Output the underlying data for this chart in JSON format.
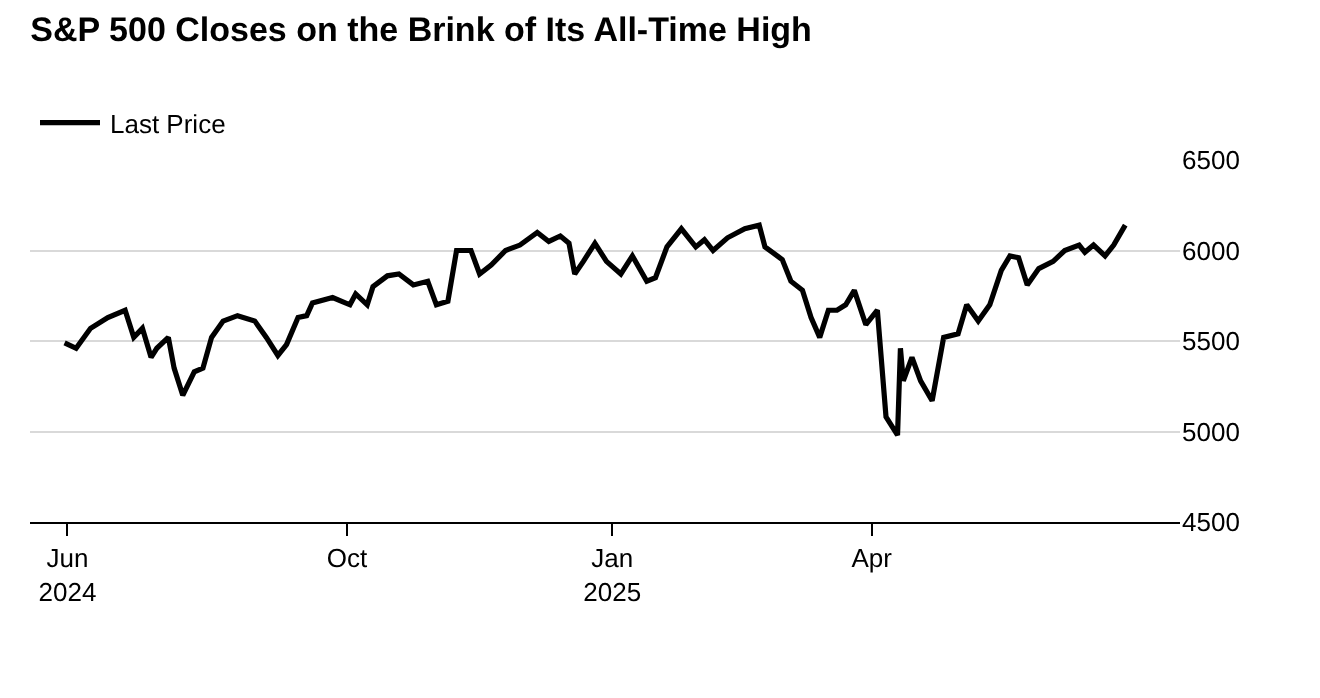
{
  "chart_data": {
    "type": "line",
    "title": "S&P 500 Closes on the Brink of Its All-Time High",
    "x": [
      "2024-06-25",
      "2024-06-29",
      "2024-07-04",
      "2024-07-10",
      "2024-07-16",
      "2024-07-19",
      "2024-07-22",
      "2024-07-25",
      "2024-07-27",
      "2024-07-31",
      "2024-08-02",
      "2024-08-05",
      "2024-08-09",
      "2024-08-12",
      "2024-08-15",
      "2024-08-19",
      "2024-08-24",
      "2024-08-30",
      "2024-09-03",
      "2024-09-07",
      "2024-09-10",
      "2024-09-14",
      "2024-09-17",
      "2024-09-19",
      "2024-09-26",
      "2024-10-02",
      "2024-10-04",
      "2024-10-08",
      "2024-10-10",
      "2024-10-15",
      "2024-10-19",
      "2024-10-24",
      "2024-10-29",
      "2024-11-01",
      "2024-11-05",
      "2024-11-08",
      "2024-11-13",
      "2024-11-16",
      "2024-11-20",
      "2024-11-25",
      "2024-11-30",
      "2024-12-06",
      "2024-12-10",
      "2024-12-14",
      "2024-12-17",
      "2024-12-19",
      "2024-12-22",
      "2024-12-26",
      "2024-12-30",
      "2025-01-04",
      "2025-01-08",
      "2025-01-13",
      "2025-01-16",
      "2025-01-20",
      "2025-01-25",
      "2025-01-30",
      "2025-02-02",
      "2025-02-05",
      "2025-02-10",
      "2025-02-16",
      "2025-02-21",
      "2025-02-23",
      "2025-03-01",
      "2025-03-04",
      "2025-03-08",
      "2025-03-11",
      "2025-03-14",
      "2025-03-17",
      "2025-03-20",
      "2025-03-23",
      "2025-03-26",
      "2025-03-30",
      "2025-04-03",
      "2025-04-06",
      "2025-04-10",
      "2025-04-11",
      "2025-04-12",
      "2025-04-15",
      "2025-04-18",
      "2025-04-22",
      "2025-04-26",
      "2025-05-01",
      "2025-05-04",
      "2025-05-08",
      "2025-05-12",
      "2025-05-16",
      "2025-05-19",
      "2025-05-22",
      "2025-05-25",
      "2025-05-29",
      "2025-06-03",
      "2025-06-07",
      "2025-06-12",
      "2025-06-14",
      "2025-06-17",
      "2025-06-21",
      "2025-06-24",
      "2025-06-28"
    ],
    "series": [
      {
        "name": "Last Price",
        "color": "#000000",
        "values": [
          5490,
          5460,
          5570,
          5630,
          5670,
          5520,
          5570,
          5410,
          5460,
          5520,
          5350,
          5200,
          5330,
          5350,
          5520,
          5610,
          5640,
          5610,
          5520,
          5420,
          5480,
          5630,
          5640,
          5710,
          5740,
          5700,
          5760,
          5700,
          5800,
          5860,
          5870,
          5810,
          5830,
          5700,
          5720,
          6000,
          6000,
          5870,
          5920,
          6000,
          6030,
          6100,
          6050,
          6080,
          6040,
          5870,
          5940,
          6040,
          5940,
          5870,
          5970,
          5830,
          5850,
          6020,
          6120,
          6020,
          6060,
          6000,
          6070,
          6120,
          6140,
          6020,
          5950,
          5830,
          5780,
          5630,
          5520,
          5670,
          5670,
          5700,
          5780,
          5590,
          5670,
          5080,
          4980,
          5460,
          5280,
          5410,
          5280,
          5170,
          5520,
          5540,
          5700,
          5610,
          5700,
          5890,
          5970,
          5960,
          5810,
          5900,
          5940,
          6000,
          6030,
          5990,
          6030,
          5970,
          6030,
          6140
        ]
      }
    ],
    "xlim": [
      "2024-06-13",
      "2025-07-17"
    ],
    "xticks": [
      {
        "value": "2024-06-26",
        "label": "Jun\n2024"
      },
      {
        "value": "2024-10-01",
        "label": "Oct"
      },
      {
        "value": "2025-01-01",
        "label": "Jan\n2025"
      },
      {
        "value": "2025-04-01",
        "label": "Apr"
      }
    ],
    "ylim": [
      4500,
      6500
    ],
    "yticks": [
      4500,
      5000,
      5500,
      6000,
      6500
    ],
    "grid": "y",
    "legend": "top left",
    "line_style": "solid",
    "marker": "none"
  }
}
